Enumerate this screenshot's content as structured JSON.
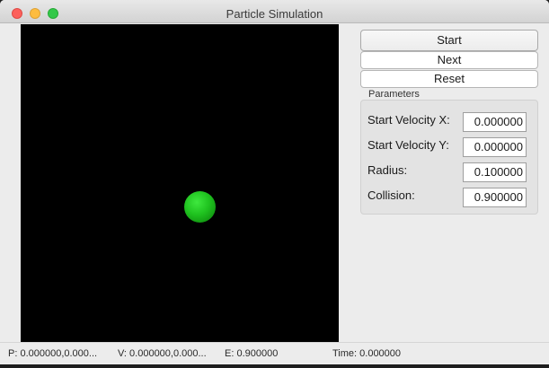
{
  "window": {
    "title": "Particle Simulation"
  },
  "buttons": {
    "start": "Start",
    "next": "Next",
    "reset": "Reset"
  },
  "parameters": {
    "group_title": "Parameters",
    "items": [
      {
        "label": "Start Velocity X:",
        "value": "0.000000"
      },
      {
        "label": "Start Velocity Y:",
        "value": "0.000000"
      },
      {
        "label": "Radius:",
        "value": "0.100000"
      },
      {
        "label": "Collision:",
        "value": "0.900000"
      }
    ]
  },
  "status": {
    "position": "P: 0.000000,0.000...",
    "velocity": "V: 0.000000,0.000...",
    "energy": "E: 0.900000",
    "time": "Time: 0.000000"
  },
  "colors": {
    "particle": "#22c022",
    "canvas": "#000000"
  }
}
